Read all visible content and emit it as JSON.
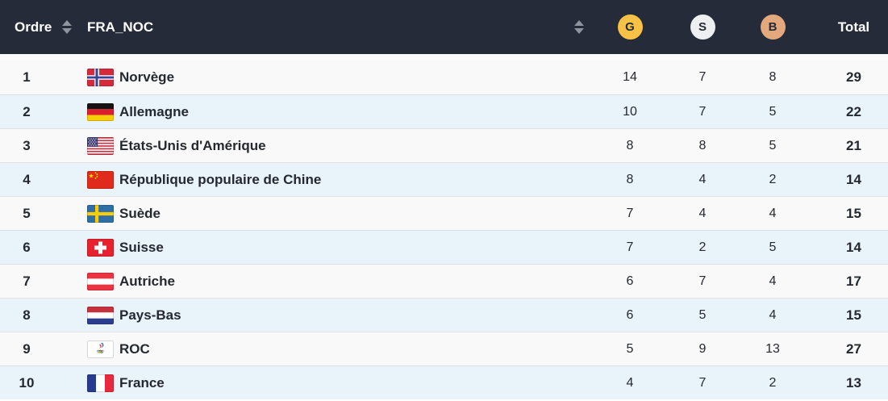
{
  "table": {
    "columns": {
      "rank": "Ordre",
      "noc": "FRA_NOC",
      "gold": "G",
      "silver": "S",
      "bronze": "B",
      "total": "Total"
    },
    "rows": [
      {
        "rank": "1",
        "country": "Norvège",
        "flag": "norway",
        "gold": "14",
        "silver": "7",
        "bronze": "8",
        "total": "29"
      },
      {
        "rank": "2",
        "country": "Allemagne",
        "flag": "germany",
        "gold": "10",
        "silver": "7",
        "bronze": "5",
        "total": "22"
      },
      {
        "rank": "3",
        "country": "États-Unis d'Amérique",
        "flag": "usa",
        "gold": "8",
        "silver": "8",
        "bronze": "5",
        "total": "21"
      },
      {
        "rank": "4",
        "country": "République populaire de Chine",
        "flag": "china",
        "gold": "8",
        "silver": "4",
        "bronze": "2",
        "total": "14"
      },
      {
        "rank": "5",
        "country": "Suède",
        "flag": "sweden",
        "gold": "7",
        "silver": "4",
        "bronze": "4",
        "total": "15"
      },
      {
        "rank": "6",
        "country": "Suisse",
        "flag": "switzerland",
        "gold": "7",
        "silver": "2",
        "bronze": "5",
        "total": "14"
      },
      {
        "rank": "7",
        "country": "Autriche",
        "flag": "austria",
        "gold": "6",
        "silver": "7",
        "bronze": "4",
        "total": "17"
      },
      {
        "rank": "8",
        "country": "Pays-Bas",
        "flag": "netherlands",
        "gold": "6",
        "silver": "5",
        "bronze": "4",
        "total": "15"
      },
      {
        "rank": "9",
        "country": "ROC",
        "flag": "roc",
        "gold": "5",
        "silver": "9",
        "bronze": "13",
        "total": "27"
      },
      {
        "rank": "10",
        "country": "France",
        "flag": "france",
        "gold": "4",
        "silver": "7",
        "bronze": "2",
        "total": "13"
      }
    ],
    "colors": {
      "header_bg": "#252b38",
      "header_text": "#ffffff",
      "sort_icon": "#8e959f",
      "gold_badge": "#f7c246",
      "silver_badge": "#edeff0",
      "bronze_badge": "#e4a87d",
      "row_odd": "#f9f9f9",
      "row_even": "#e9f4fa",
      "row_text": "#24292f"
    }
  }
}
